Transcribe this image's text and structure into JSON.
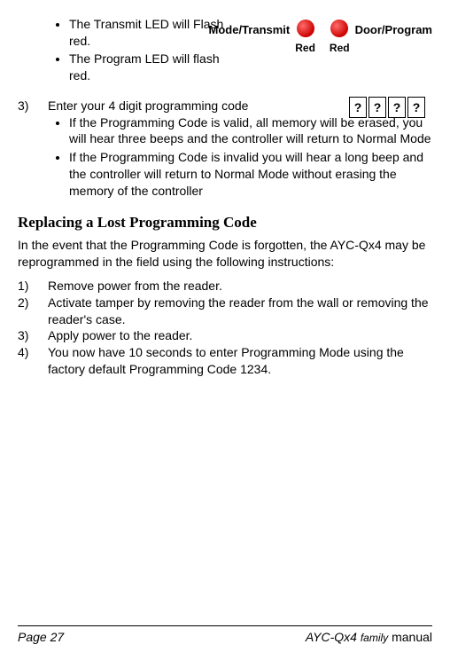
{
  "topBullets": [
    "The Transmit LED will Flash red.",
    "The Program LED will flash red."
  ],
  "leds": {
    "left": {
      "label": "Mode/Transmit",
      "sub": "Red"
    },
    "right": {
      "label": "Door/Program",
      "sub": "Red"
    }
  },
  "step3": {
    "num": "3)",
    "intro": "Enter your 4 digit programming code",
    "digits": [
      "?",
      "?",
      "?",
      "?"
    ],
    "subs": [
      "If the Programming Code is valid, all memory will be erased, you will hear three beeps and the controller will return to Normal Mode",
      "If the Programming Code is invalid you will hear a long beep and the controller will return to Normal Mode without erasing the memory of the controller"
    ]
  },
  "sectionTitle": "Replacing a Lost Programming Code",
  "paragraph": "In the event that the Programming Code is forgotten, the AYC-Qx4 may be reprogrammed in the field using the following instructions:",
  "steps": [
    {
      "n": "1)",
      "t": "Remove power from the reader."
    },
    {
      "n": "2)",
      "t": "Activate tamper by removing the reader from the wall or removing the reader's case."
    },
    {
      "n": "3)",
      "t": "Apply power to the reader."
    },
    {
      "n": "4)",
      "t": "You now have 10 seconds to enter Programming Mode using the factory default Programming Code 1234."
    }
  ],
  "footer": {
    "left": "Page 27",
    "product": "AYC-Qx4",
    "family": "family",
    "manual": "manual"
  }
}
